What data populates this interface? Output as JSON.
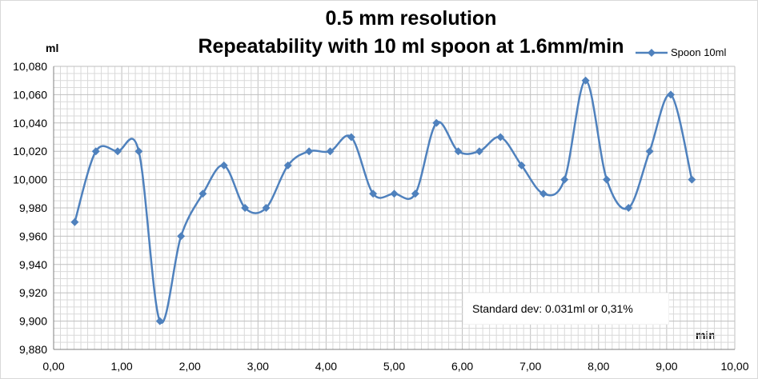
{
  "chart_data": {
    "type": "line",
    "title": "0.5 mm resolution",
    "subtitle": "Repeatability with 10 ml spoon at 1.6mm/min",
    "xlabel": "min",
    "ylabel": "ml",
    "xlim": [
      0,
      10
    ],
    "ylim": [
      9.88,
      10.08
    ],
    "x_ticks": [
      "0,00",
      "1,00",
      "2,00",
      "3,00",
      "4,00",
      "5,00",
      "6,00",
      "7,00",
      "8,00",
      "9,00",
      "10,00"
    ],
    "y_ticks": [
      "9,880",
      "9,900",
      "9,920",
      "9,940",
      "9,960",
      "9,980",
      "10,000",
      "10,020",
      "10,040",
      "10,060",
      "10,080"
    ],
    "grid": true,
    "legend_position": "top-right",
    "series": [
      {
        "name": "Spoon 10ml",
        "color": "#4f81bd",
        "marker": "diamond",
        "smooth": true,
        "x": [
          0.31,
          0.62,
          0.94,
          1.25,
          1.56,
          1.87,
          2.19,
          2.5,
          2.81,
          3.12,
          3.44,
          3.75,
          4.06,
          4.37,
          4.69,
          5.0,
          5.31,
          5.62,
          5.94,
          6.25,
          6.56,
          6.87,
          7.19,
          7.5,
          7.81,
          8.12,
          8.44,
          8.75,
          9.06,
          9.37
        ],
        "values": [
          9.97,
          10.02,
          10.02,
          10.02,
          9.9,
          9.96,
          9.99,
          10.01,
          9.98,
          9.98,
          10.01,
          10.02,
          10.02,
          10.03,
          9.99,
          9.99,
          9.99,
          10.04,
          10.02,
          10.02,
          10.03,
          10.01,
          9.99,
          10.0,
          10.07,
          10.0,
          9.98,
          10.02,
          10.06,
          10.0
        ]
      }
    ],
    "annotation": "Standard  dev: 0.031ml or 0,31%"
  }
}
